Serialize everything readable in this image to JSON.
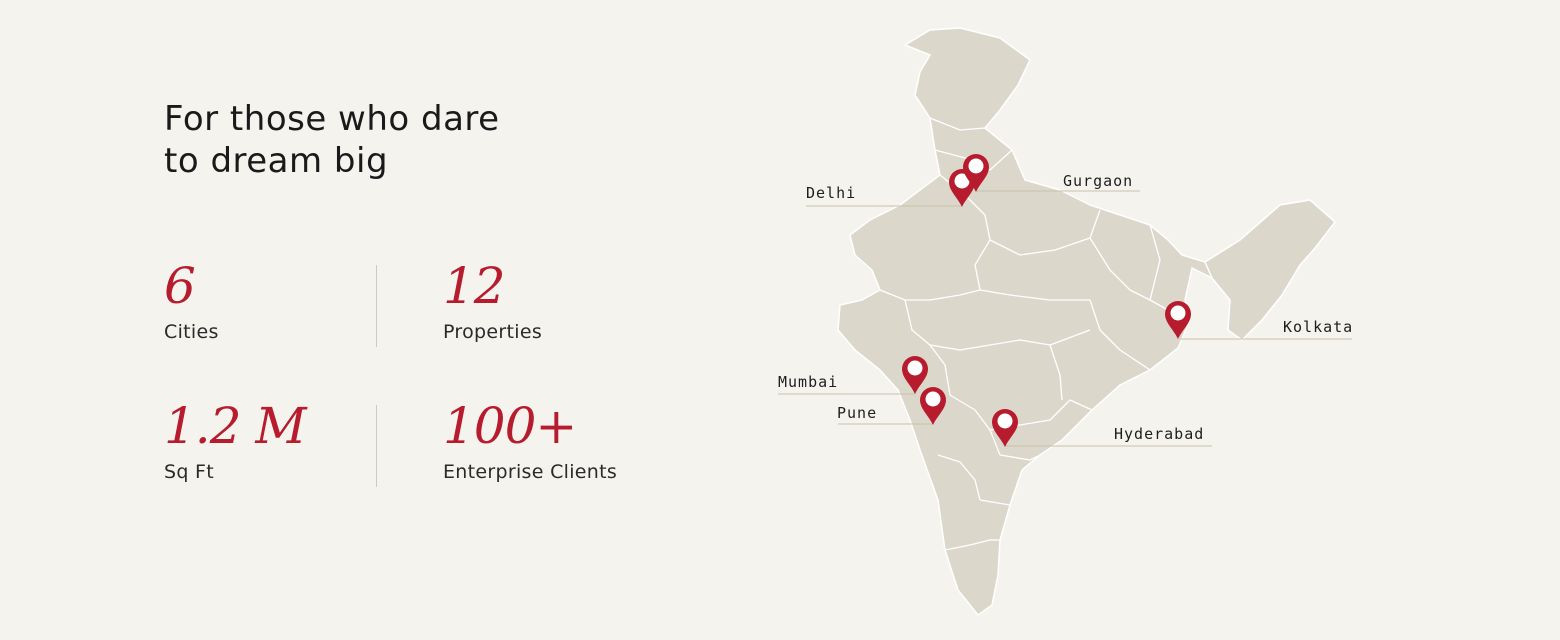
{
  "headline": {
    "line1": "For those who dare",
    "line2": "to dream big"
  },
  "stats": [
    {
      "value": "6",
      "label": "Cities"
    },
    {
      "value": "12",
      "label": "Properties"
    },
    {
      "value": "1.2 M",
      "label": "Sq Ft"
    },
    {
      "value": "100+",
      "label": "Enterprise Clients"
    }
  ],
  "map": {
    "locations": [
      {
        "name": "Delhi"
      },
      {
        "name": "Gurgaon"
      },
      {
        "name": "Kolkata"
      },
      {
        "name": "Mumbai"
      },
      {
        "name": "Pune"
      },
      {
        "name": "Hyderabad"
      }
    ]
  },
  "colors": {
    "background": "#f5f3ee",
    "accent": "#b71c2e",
    "map_fill": "#dcd7cb",
    "map_border": "#ffffff",
    "leader_line": "#c9c1a9"
  },
  "icons": {
    "marker": "map-pin-icon"
  }
}
